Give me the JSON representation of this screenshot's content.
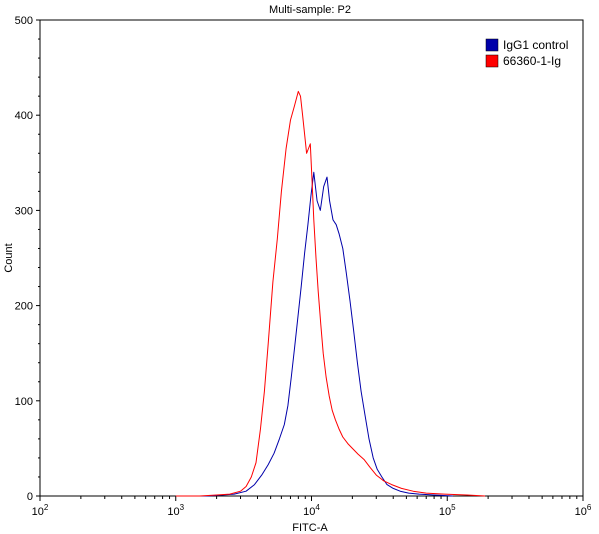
{
  "chart_data": {
    "type": "line",
    "title": "Multi-sample: P2",
    "xlabel": "FITC-A",
    "ylabel": "Count",
    "x_scale": "log",
    "xlim": [
      100,
      1000000
    ],
    "ylim": [
      0,
      500
    ],
    "x_ticks": [
      {
        "base": "10",
        "exp": "2"
      },
      {
        "base": "10",
        "exp": "3"
      },
      {
        "base": "10",
        "exp": "4"
      },
      {
        "base": "10",
        "exp": "5"
      },
      {
        "base": "10",
        "exp": "6"
      }
    ],
    "y_ticks": [
      "0",
      "100",
      "200",
      "300",
      "400",
      "500"
    ],
    "grid": false,
    "legend_position": "top-right",
    "series": [
      {
        "name": "IgG1 control",
        "color": "#0000aa",
        "x": [
          1000,
          1700,
          2200,
          2700,
          3300,
          3800,
          4300,
          4800,
          5300,
          5800,
          6300,
          6700,
          7100,
          7500,
          7900,
          8400,
          8900,
          9400,
          9900,
          10400,
          11000,
          11600,
          12300,
          13000,
          13600,
          14400,
          15200,
          16000,
          17000,
          18000,
          19200,
          20400,
          21800,
          23200,
          24800,
          26500,
          28500,
          30500,
          33000,
          36000,
          40000,
          45000,
          52000,
          62000,
          80000,
          110000
        ],
        "y": [
          0,
          0,
          1,
          2,
          5,
          12,
          22,
          33,
          45,
          60,
          75,
          95,
          125,
          155,
          185,
          220,
          255,
          285,
          315,
          340,
          310,
          300,
          325,
          335,
          310,
          290,
          285,
          275,
          260,
          235,
          205,
          175,
          140,
          110,
          85,
          60,
          40,
          28,
          20,
          12,
          8,
          5,
          3,
          2,
          1,
          0
        ]
      },
      {
        "name": "66360-1-Ig",
        "color": "#ff0000",
        "x": [
          1000,
          1500,
          2000,
          2500,
          3000,
          3300,
          3600,
          3900,
          4200,
          4500,
          4800,
          5200,
          5600,
          6000,
          6500,
          7000,
          7500,
          8000,
          8300,
          8600,
          8900,
          9200,
          9500,
          9800,
          10100,
          10400,
          10800,
          11200,
          11700,
          12200,
          12800,
          13500,
          14200,
          15000,
          16000,
          17000,
          18500,
          20000,
          22000,
          24500,
          27000,
          30000,
          34000,
          39000,
          46000,
          56000,
          70000,
          95000,
          140000,
          190000
        ],
        "y": [
          0,
          0,
          1,
          2,
          5,
          10,
          20,
          35,
          70,
          110,
          160,
          225,
          270,
          320,
          365,
          395,
          410,
          425,
          420,
          400,
          380,
          360,
          365,
          370,
          330,
          290,
          250,
          215,
          180,
          150,
          125,
          105,
          90,
          80,
          70,
          62,
          55,
          50,
          44,
          38,
          30,
          22,
          16,
          12,
          8,
          5,
          3,
          2,
          1,
          0
        ]
      }
    ]
  }
}
